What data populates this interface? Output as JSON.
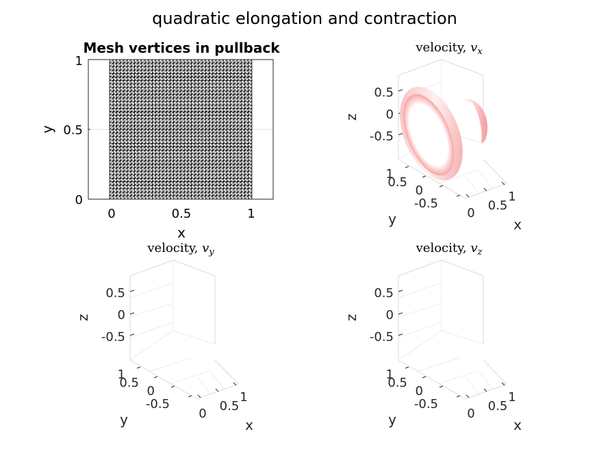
{
  "figure": {
    "suptitle": "quadratic elongation and contraction"
  },
  "chart_data": [
    {
      "type": "mesh",
      "title": "Mesh vertices in pullback",
      "xlabel": "x",
      "ylabel": "y",
      "xlim": [
        -0.15,
        1.15
      ],
      "ylim": [
        0,
        1
      ],
      "x_ticks": [
        "0",
        "0.5",
        "1"
      ],
      "y_ticks": [
        "0",
        "0.5",
        "1"
      ],
      "grid": true,
      "mesh": {
        "x_range": [
          0,
          1
        ],
        "y_range": [
          0,
          1
        ],
        "divisions": 40,
        "element": "triangle",
        "color": "#000000"
      }
    },
    {
      "type": "surface3d",
      "title_text": "velocity, ",
      "title_var": "v",
      "title_sub": "x",
      "xlabel": "x",
      "ylabel": "y",
      "zlabel": "z",
      "x_ticks": [
        "0",
        "0.5",
        "1"
      ],
      "y_ticks": [
        "1",
        "0.5",
        "0",
        "-0.5"
      ],
      "z_ticks": [
        "0.5",
        "0",
        "-0.5"
      ],
      "has_surface": true,
      "surface_color": "#f4a0a0"
    },
    {
      "type": "surface3d",
      "title_text": "velocity, ",
      "title_var": "v",
      "title_sub": "y",
      "xlabel": "x",
      "ylabel": "y",
      "zlabel": "z",
      "x_ticks": [
        "0",
        "0.5",
        "1"
      ],
      "y_ticks": [
        "1",
        "0.5",
        "0",
        "-0.5"
      ],
      "z_ticks": [
        "0.5",
        "0",
        "-0.5"
      ],
      "has_surface": false
    },
    {
      "type": "surface3d",
      "title_text": "velocity, ",
      "title_var": "v",
      "title_sub": "z",
      "xlabel": "x",
      "ylabel": "y",
      "zlabel": "z",
      "x_ticks": [
        "0",
        "0.5",
        "1"
      ],
      "y_ticks": [
        "1",
        "0.5",
        "0",
        "-0.5"
      ],
      "z_ticks": [
        "0.5",
        "0",
        "-0.5"
      ],
      "has_surface": false
    }
  ]
}
